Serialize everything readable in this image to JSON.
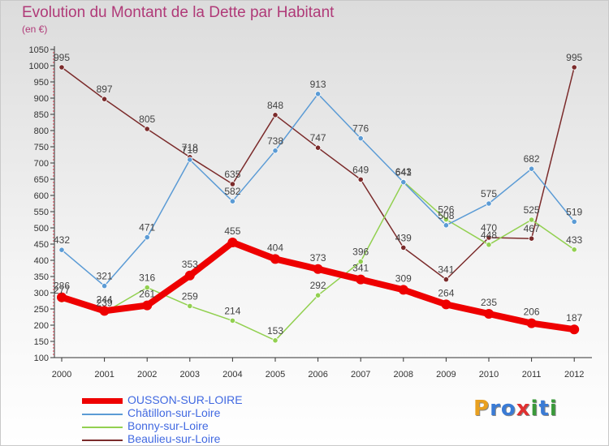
{
  "chart_data": {
    "type": "line",
    "title": "Evolution du Montant de la Dette par Habitant",
    "subtitle": "(en €)",
    "xlabel": "",
    "ylabel": "",
    "categories": [
      "2000",
      "2001",
      "2002",
      "2003",
      "2004",
      "2005",
      "2006",
      "2007",
      "2008",
      "2009",
      "2010",
      "2011",
      "2012"
    ],
    "ylim": [
      100,
      1050
    ],
    "ytick_step": 50,
    "grid": false,
    "legend_position": "bottom-left",
    "series": [
      {
        "name": "OUSSON-SUR-LOIRE",
        "color": "#ee0000",
        "values": [
          286,
          244,
          261,
          353,
          455,
          404,
          373,
          341,
          309,
          264,
          235,
          206,
          187
        ]
      },
      {
        "name": "Châtillon-sur-Loire",
        "color": "#5b9bd5",
        "values": [
          432,
          321,
          471,
          710,
          582,
          738,
          913,
          776,
          641,
          508,
          575,
          682,
          519
        ]
      },
      {
        "name": "Bonny-sur-Loire",
        "color": "#92d050",
        "values": [
          277,
          239,
          316,
          259,
          214,
          153,
          292,
          396,
          643,
          526,
          448,
          525,
          433
        ]
      },
      {
        "name": "Beaulieu-sur-Loire",
        "color": "#7b2b2b",
        "values": [
          995,
          897,
          805,
          718,
          635,
          848,
          747,
          649,
          439,
          341,
          470,
          467,
          995
        ]
      }
    ]
  },
  "logo": {
    "letters": [
      "P",
      "r",
      "o",
      "x",
      "i",
      "t",
      "i"
    ],
    "colors": [
      "#e8a020",
      "#3a7bd5",
      "#3a7bd5",
      "#e03030",
      "#3a9a3a",
      "#3a7bd5",
      "#3a9a3a"
    ]
  }
}
